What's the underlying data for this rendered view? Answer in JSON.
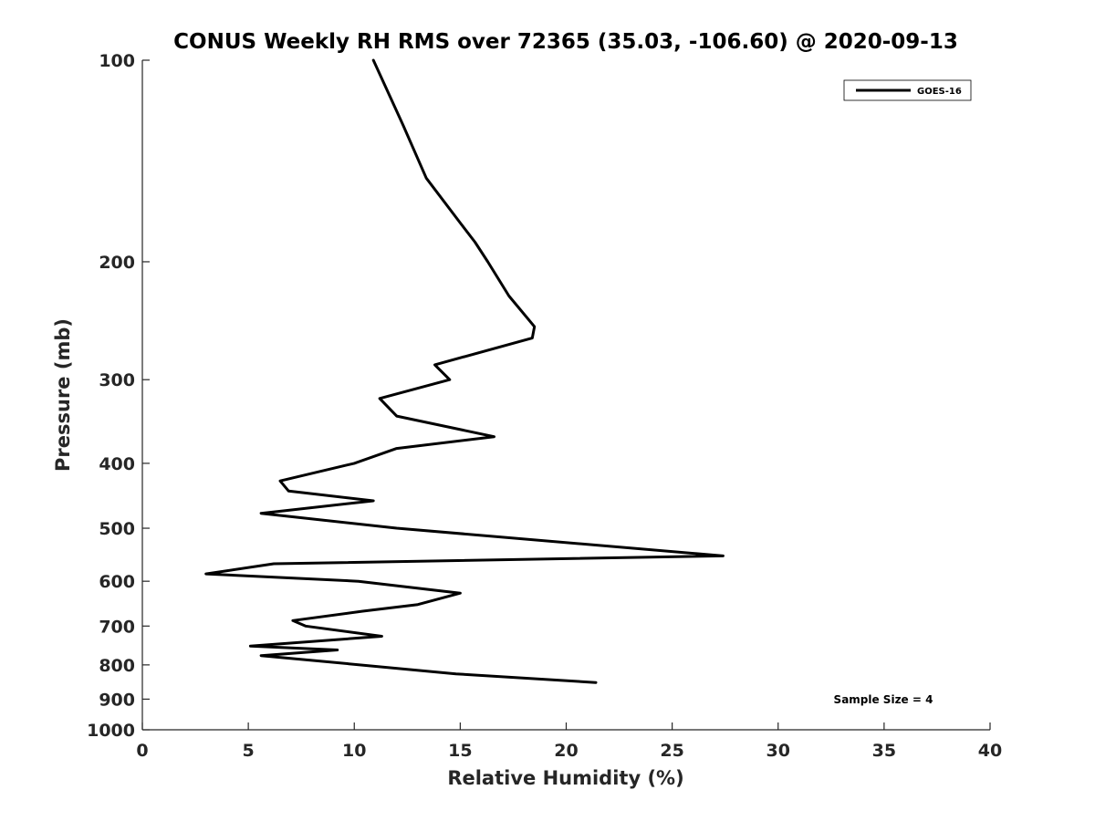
{
  "chart_data": {
    "type": "line",
    "title": "CONUS Weekly RH RMS over 72365 (35.03, -106.60) @ 2020-09-13",
    "xlabel": "Relative Humidity (%)",
    "ylabel": "Pressure (mb)",
    "xlim": [
      0,
      40
    ],
    "ylim": [
      100,
      1000
    ],
    "y_scale": "log",
    "y_inverted": true,
    "grid": false,
    "legend_position": "top-right",
    "xticks": [
      0,
      5,
      10,
      15,
      20,
      25,
      30,
      35,
      40
    ],
    "xtick_labels": [
      "0",
      "5",
      "10",
      "15",
      "20",
      "25",
      "30",
      "35",
      "40"
    ],
    "yticks": [
      100,
      200,
      300,
      400,
      500,
      600,
      700,
      800,
      900,
      1000
    ],
    "ytick_labels": [
      "100",
      "200",
      "300",
      "400",
      "500",
      "600",
      "700",
      "800",
      "900",
      "1000"
    ],
    "annotation": "Sample Size = 4",
    "series": [
      {
        "name": "GOES-16",
        "color": "#000000",
        "points": [
          {
            "x": 10.9,
            "y": 100
          },
          {
            "x": 12.3,
            "y": 125
          },
          {
            "x": 13.4,
            "y": 150
          },
          {
            "x": 15.0,
            "y": 175
          },
          {
            "x": 15.7,
            "y": 187
          },
          {
            "x": 16.3,
            "y": 200
          },
          {
            "x": 17.3,
            "y": 225
          },
          {
            "x": 18.5,
            "y": 250
          },
          {
            "x": 18.4,
            "y": 260
          },
          {
            "x": 13.8,
            "y": 285
          },
          {
            "x": 14.5,
            "y": 300
          },
          {
            "x": 11.2,
            "y": 320
          },
          {
            "x": 12.0,
            "y": 340
          },
          {
            "x": 16.6,
            "y": 365
          },
          {
            "x": 12.0,
            "y": 380
          },
          {
            "x": 10.0,
            "y": 400
          },
          {
            "x": 6.5,
            "y": 425
          },
          {
            "x": 6.9,
            "y": 440
          },
          {
            "x": 10.9,
            "y": 455
          },
          {
            "x": 5.6,
            "y": 475
          },
          {
            "x": 12.0,
            "y": 500
          },
          {
            "x": 27.4,
            "y": 550
          },
          {
            "x": 6.2,
            "y": 565
          },
          {
            "x": 3.0,
            "y": 585
          },
          {
            "x": 10.2,
            "y": 600
          },
          {
            "x": 15.0,
            "y": 625
          },
          {
            "x": 13.0,
            "y": 650
          },
          {
            "x": 10.4,
            "y": 665
          },
          {
            "x": 7.1,
            "y": 687
          },
          {
            "x": 7.7,
            "y": 700
          },
          {
            "x": 11.3,
            "y": 725
          },
          {
            "x": 5.1,
            "y": 750
          },
          {
            "x": 9.2,
            "y": 760
          },
          {
            "x": 5.6,
            "y": 775
          },
          {
            "x": 14.8,
            "y": 825
          },
          {
            "x": 21.4,
            "y": 850
          }
        ]
      }
    ]
  }
}
